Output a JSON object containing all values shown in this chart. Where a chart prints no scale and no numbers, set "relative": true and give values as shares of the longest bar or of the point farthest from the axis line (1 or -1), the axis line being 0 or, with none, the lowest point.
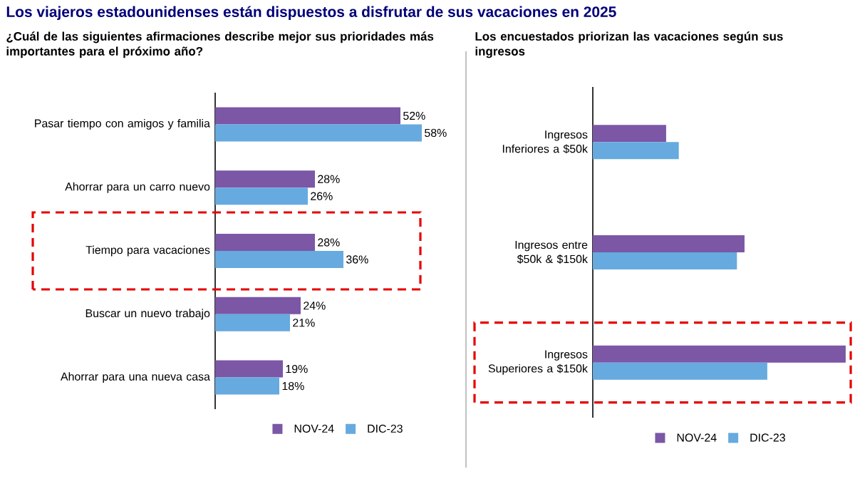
{
  "chart_data": [
    {
      "type": "bar",
      "orientation": "horizontal",
      "title": "Los viajeros estadounidenses están dispuestos a disfrutar de sus vacaciones en 2025",
      "subtitle": "¿Cuál de las siguientes afirmaciones describe mejor sus prioridades más importantes para el próximo año?",
      "categories": [
        "Pasar tiempo con amigos y familia",
        "Ahorrar para un carro nuevo",
        "Tiempo para vacaciones",
        "Buscar un nuevo trabajo",
        "Ahorrar para una nueva casa"
      ],
      "series": [
        {
          "name": "NOV-24",
          "color": "#7b57a6",
          "values": [
            52,
            28,
            28,
            24,
            19
          ],
          "value_labels": [
            "52%",
            "28%",
            "28%",
            "24%",
            "19%"
          ]
        },
        {
          "name": "DIC-23",
          "color": "#66aadf",
          "values": [
            58,
            26,
            36,
            21,
            18
          ],
          "value_labels": [
            "58%",
            "26%",
            "36%",
            "21%",
            "18%"
          ]
        }
      ],
      "legend": "bottom"
    },
    {
      "type": "bar",
      "orientation": "horizontal",
      "relative": true,
      "subtitle": "Los encuestados priorizan las vacaciones según sus ingresos",
      "categories": [
        "Ingresos Inferiores a $50k",
        "Ingresos entre $50k & $150k",
        "Ingresos Superiores a $150k"
      ],
      "series": [
        {
          "name": "NOV-24",
          "color": "#7b57a6",
          "values": [
            0.29,
            0.6,
            1
          ]
        },
        {
          "name": "DIC-23",
          "color": "#66aadf",
          "values": [
            0.34,
            0.57,
            0.69
          ]
        }
      ],
      "legend": "bottom"
    }
  ]
}
